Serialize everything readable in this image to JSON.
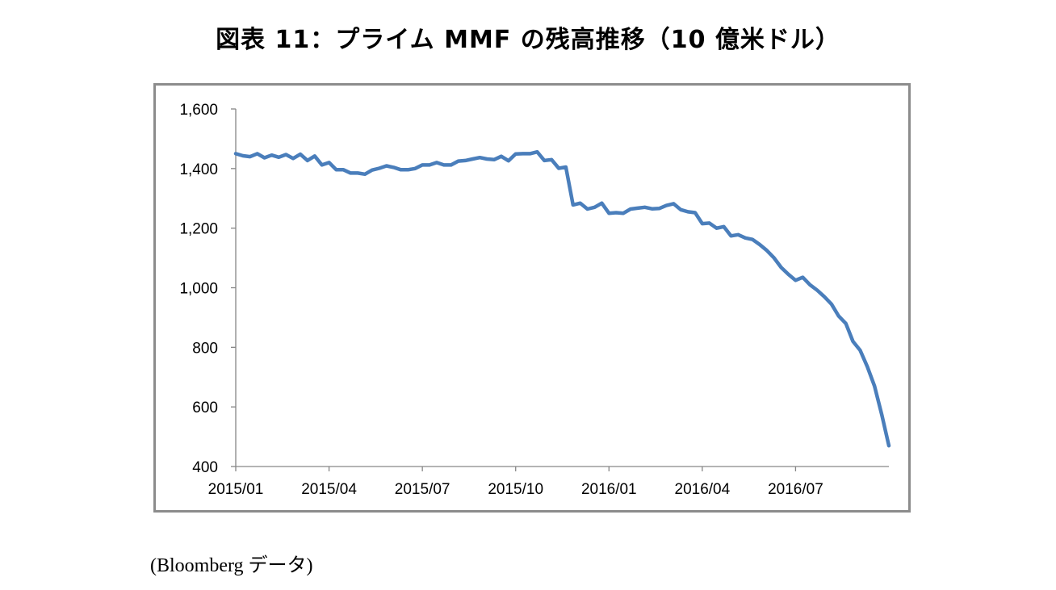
{
  "title": "図表 11：プライム MMF の残高推移（10 億米ドル）",
  "source": "(Bloomberg データ)",
  "colors": {
    "line": "#4a7ebb",
    "axis": "#868686",
    "frame": "#8c8c8c"
  },
  "chart_data": {
    "type": "line",
    "title": "図表 11：プライム MMF の残高推移（10 億米ドル）",
    "xlabel": "",
    "ylabel": "",
    "ylim": [
      400,
      1600
    ],
    "yticks": [
      400,
      600,
      800,
      1000,
      1200,
      1400,
      1600
    ],
    "ytick_labels": [
      "400",
      "600",
      "800",
      "1,000",
      "1,200",
      "1,400",
      "1,600"
    ],
    "xtick_labels": [
      "2015/01",
      "2015/04",
      "2015/07",
      "2015/10",
      "2016/01",
      "2016/04",
      "2016/07"
    ],
    "xtick_positions": [
      0,
      13,
      26,
      39,
      52,
      65,
      78
    ],
    "x_count": 92,
    "grid": false,
    "legend": "none",
    "series": [
      {
        "name": "プライム MMF 残高",
        "values": [
          1450,
          1443,
          1440,
          1450,
          1436,
          1445,
          1438,
          1447,
          1434,
          1448,
          1427,
          1442,
          1412,
          1420,
          1396,
          1396,
          1385,
          1385,
          1381,
          1395,
          1401,
          1409,
          1404,
          1396,
          1396,
          1400,
          1412,
          1412,
          1420,
          1412,
          1412,
          1425,
          1427,
          1432,
          1437,
          1432,
          1430,
          1441,
          1426,
          1449,
          1450,
          1450,
          1456,
          1427,
          1430,
          1401,
          1405,
          1278,
          1284,
          1264,
          1270,
          1284,
          1250,
          1252,
          1250,
          1264,
          1267,
          1270,
          1265,
          1266,
          1276,
          1282,
          1262,
          1255,
          1252,
          1215,
          1217,
          1200,
          1205,
          1174,
          1178,
          1167,
          1162,
          1145,
          1125,
          1100,
          1068,
          1045,
          1025,
          1035,
          1010,
          992,
          970,
          945,
          905,
          880,
          820,
          790,
          735,
          670,
          575,
          470
        ]
      }
    ]
  }
}
